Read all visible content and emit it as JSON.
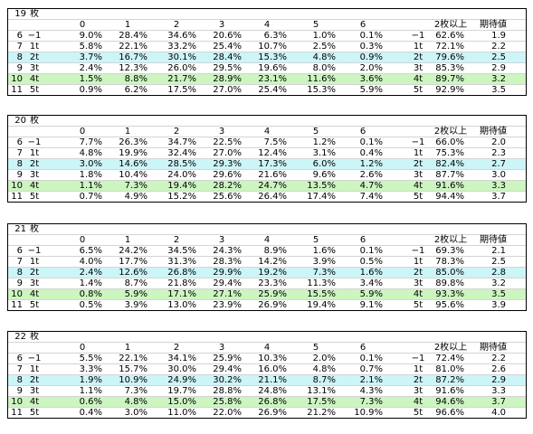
{
  "columns": [
    "0",
    "1",
    "2",
    "3",
    "4",
    "5",
    "6"
  ],
  "summary_headers": [
    "2枚以上",
    "期待値"
  ],
  "blocks": [
    {
      "count": "19",
      "unit": "枚",
      "rows": [
        {
          "n": "6",
          "label": "−1",
          "vals": [
            "9.0%",
            "28.4%",
            "34.6%",
            "20.6%",
            "6.3%",
            "1.0%",
            "0.1%"
          ],
          "label2": "−1",
          "p2": "62.6%",
          "ev": "1.9",
          "hl": ""
        },
        {
          "n": "7",
          "label": "1t",
          "vals": [
            "5.8%",
            "22.1%",
            "33.2%",
            "25.4%",
            "10.7%",
            "2.5%",
            "0.3%"
          ],
          "label2": "1t",
          "p2": "72.1%",
          "ev": "2.2",
          "hl": ""
        },
        {
          "n": "8",
          "label": "2t",
          "vals": [
            "3.7%",
            "16.7%",
            "30.1%",
            "28.4%",
            "15.3%",
            "4.8%",
            "0.9%"
          ],
          "label2": "2t",
          "p2": "79.6%",
          "ev": "2.5",
          "hl": "c"
        },
        {
          "n": "9",
          "label": "3t",
          "vals": [
            "2.4%",
            "12.3%",
            "26.0%",
            "29.5%",
            "19.6%",
            "8.0%",
            "2.0%"
          ],
          "label2": "3t",
          "p2": "85.3%",
          "ev": "2.9",
          "hl": ""
        },
        {
          "n": "10",
          "label": "4t",
          "vals": [
            "1.5%",
            "8.8%",
            "21.7%",
            "28.9%",
            "23.1%",
            "11.6%",
            "3.6%"
          ],
          "label2": "4t",
          "p2": "89.7%",
          "ev": "3.2",
          "hl": "g"
        },
        {
          "n": "11",
          "label": "5t",
          "vals": [
            "0.9%",
            "6.2%",
            "17.5%",
            "27.0%",
            "25.4%",
            "15.3%",
            "5.9%"
          ],
          "label2": "5t",
          "p2": "92.9%",
          "ev": "3.5",
          "hl": ""
        }
      ]
    },
    {
      "count": "20",
      "unit": "枚",
      "rows": [
        {
          "n": "6",
          "label": "−1",
          "vals": [
            "7.7%",
            "26.3%",
            "34.7%",
            "22.5%",
            "7.5%",
            "1.2%",
            "0.1%"
          ],
          "label2": "−1",
          "p2": "66.0%",
          "ev": "2.0",
          "hl": ""
        },
        {
          "n": "7",
          "label": "1t",
          "vals": [
            "4.8%",
            "19.9%",
            "32.4%",
            "27.0%",
            "12.4%",
            "3.1%",
            "0.4%"
          ],
          "label2": "1t",
          "p2": "75.3%",
          "ev": "2.3",
          "hl": ""
        },
        {
          "n": "8",
          "label": "2t",
          "vals": [
            "3.0%",
            "14.6%",
            "28.5%",
            "29.3%",
            "17.3%",
            "6.0%",
            "1.2%"
          ],
          "label2": "2t",
          "p2": "82.4%",
          "ev": "2.7",
          "hl": "c"
        },
        {
          "n": "9",
          "label": "3t",
          "vals": [
            "1.8%",
            "10.4%",
            "24.0%",
            "29.6%",
            "21.6%",
            "9.6%",
            "2.6%"
          ],
          "label2": "3t",
          "p2": "87.7%",
          "ev": "3.0",
          "hl": ""
        },
        {
          "n": "10",
          "label": "4t",
          "vals": [
            "1.1%",
            "7.3%",
            "19.4%",
            "28.2%",
            "24.7%",
            "13.5%",
            "4.7%"
          ],
          "label2": "4t",
          "p2": "91.6%",
          "ev": "3.3",
          "hl": "g"
        },
        {
          "n": "11",
          "label": "5t",
          "vals": [
            "0.7%",
            "4.9%",
            "15.2%",
            "25.6%",
            "26.4%",
            "17.4%",
            "7.4%"
          ],
          "label2": "5t",
          "p2": "94.4%",
          "ev": "3.7",
          "hl": ""
        }
      ]
    },
    {
      "count": "21",
      "unit": "枚",
      "rows": [
        {
          "n": "6",
          "label": "−1",
          "vals": [
            "6.5%",
            "24.2%",
            "34.5%",
            "24.3%",
            "8.9%",
            "1.6%",
            "0.1%"
          ],
          "label2": "−1",
          "p2": "69.3%",
          "ev": "2.1",
          "hl": ""
        },
        {
          "n": "7",
          "label": "1t",
          "vals": [
            "4.0%",
            "17.7%",
            "31.3%",
            "28.3%",
            "14.2%",
            "3.9%",
            "0.5%"
          ],
          "label2": "1t",
          "p2": "78.3%",
          "ev": "2.5",
          "hl": ""
        },
        {
          "n": "8",
          "label": "2t",
          "vals": [
            "2.4%",
            "12.6%",
            "26.8%",
            "29.9%",
            "19.2%",
            "7.3%",
            "1.6%"
          ],
          "label2": "2t",
          "p2": "85.0%",
          "ev": "2.8",
          "hl": "c"
        },
        {
          "n": "9",
          "label": "3t",
          "vals": [
            "1.4%",
            "8.7%",
            "21.8%",
            "29.4%",
            "23.3%",
            "11.3%",
            "3.4%"
          ],
          "label2": "3t",
          "p2": "89.8%",
          "ev": "3.2",
          "hl": ""
        },
        {
          "n": "10",
          "label": "4t",
          "vals": [
            "0.8%",
            "5.9%",
            "17.1%",
            "27.1%",
            "25.9%",
            "15.5%",
            "5.9%"
          ],
          "label2": "4t",
          "p2": "93.3%",
          "ev": "3.5",
          "hl": "g"
        },
        {
          "n": "11",
          "label": "5t",
          "vals": [
            "0.5%",
            "3.9%",
            "13.0%",
            "23.9%",
            "26.9%",
            "19.4%",
            "9.1%"
          ],
          "label2": "5t",
          "p2": "95.6%",
          "ev": "3.9",
          "hl": ""
        }
      ]
    },
    {
      "count": "22",
      "unit": "枚",
      "rows": [
        {
          "n": "6",
          "label": "−1",
          "vals": [
            "5.5%",
            "22.1%",
            "34.1%",
            "25.9%",
            "10.3%",
            "2.0%",
            "0.1%"
          ],
          "label2": "−1",
          "p2": "72.4%",
          "ev": "2.2",
          "hl": ""
        },
        {
          "n": "7",
          "label": "1t",
          "vals": [
            "3.3%",
            "15.7%",
            "30.0%",
            "29.4%",
            "16.0%",
            "4.8%",
            "0.7%"
          ],
          "label2": "1t",
          "p2": "81.0%",
          "ev": "2.6",
          "hl": ""
        },
        {
          "n": "8",
          "label": "2t",
          "vals": [
            "1.9%",
            "10.9%",
            "24.9%",
            "30.2%",
            "21.1%",
            "8.7%",
            "2.1%"
          ],
          "label2": "2t",
          "p2": "87.2%",
          "ev": "2.9",
          "hl": "c"
        },
        {
          "n": "9",
          "label": "3t",
          "vals": [
            "1.1%",
            "7.3%",
            "19.7%",
            "28.8%",
            "24.8%",
            "13.1%",
            "4.3%"
          ],
          "label2": "3t",
          "p2": "91.6%",
          "ev": "3.3",
          "hl": ""
        },
        {
          "n": "10",
          "label": "4t",
          "vals": [
            "0.6%",
            "4.8%",
            "15.0%",
            "25.8%",
            "26.8%",
            "17.5%",
            "7.3%"
          ],
          "label2": "4t",
          "p2": "94.6%",
          "ev": "3.7",
          "hl": "g"
        },
        {
          "n": "11",
          "label": "5t",
          "vals": [
            "0.4%",
            "3.0%",
            "11.0%",
            "22.0%",
            "26.9%",
            "21.2%",
            "10.9%"
          ],
          "label2": "5t",
          "p2": "96.6%",
          "ev": "4.0",
          "hl": ""
        }
      ]
    }
  ],
  "highlight_colors": {
    "c": "#ccf5f8",
    "g": "#ccf5c0"
  }
}
